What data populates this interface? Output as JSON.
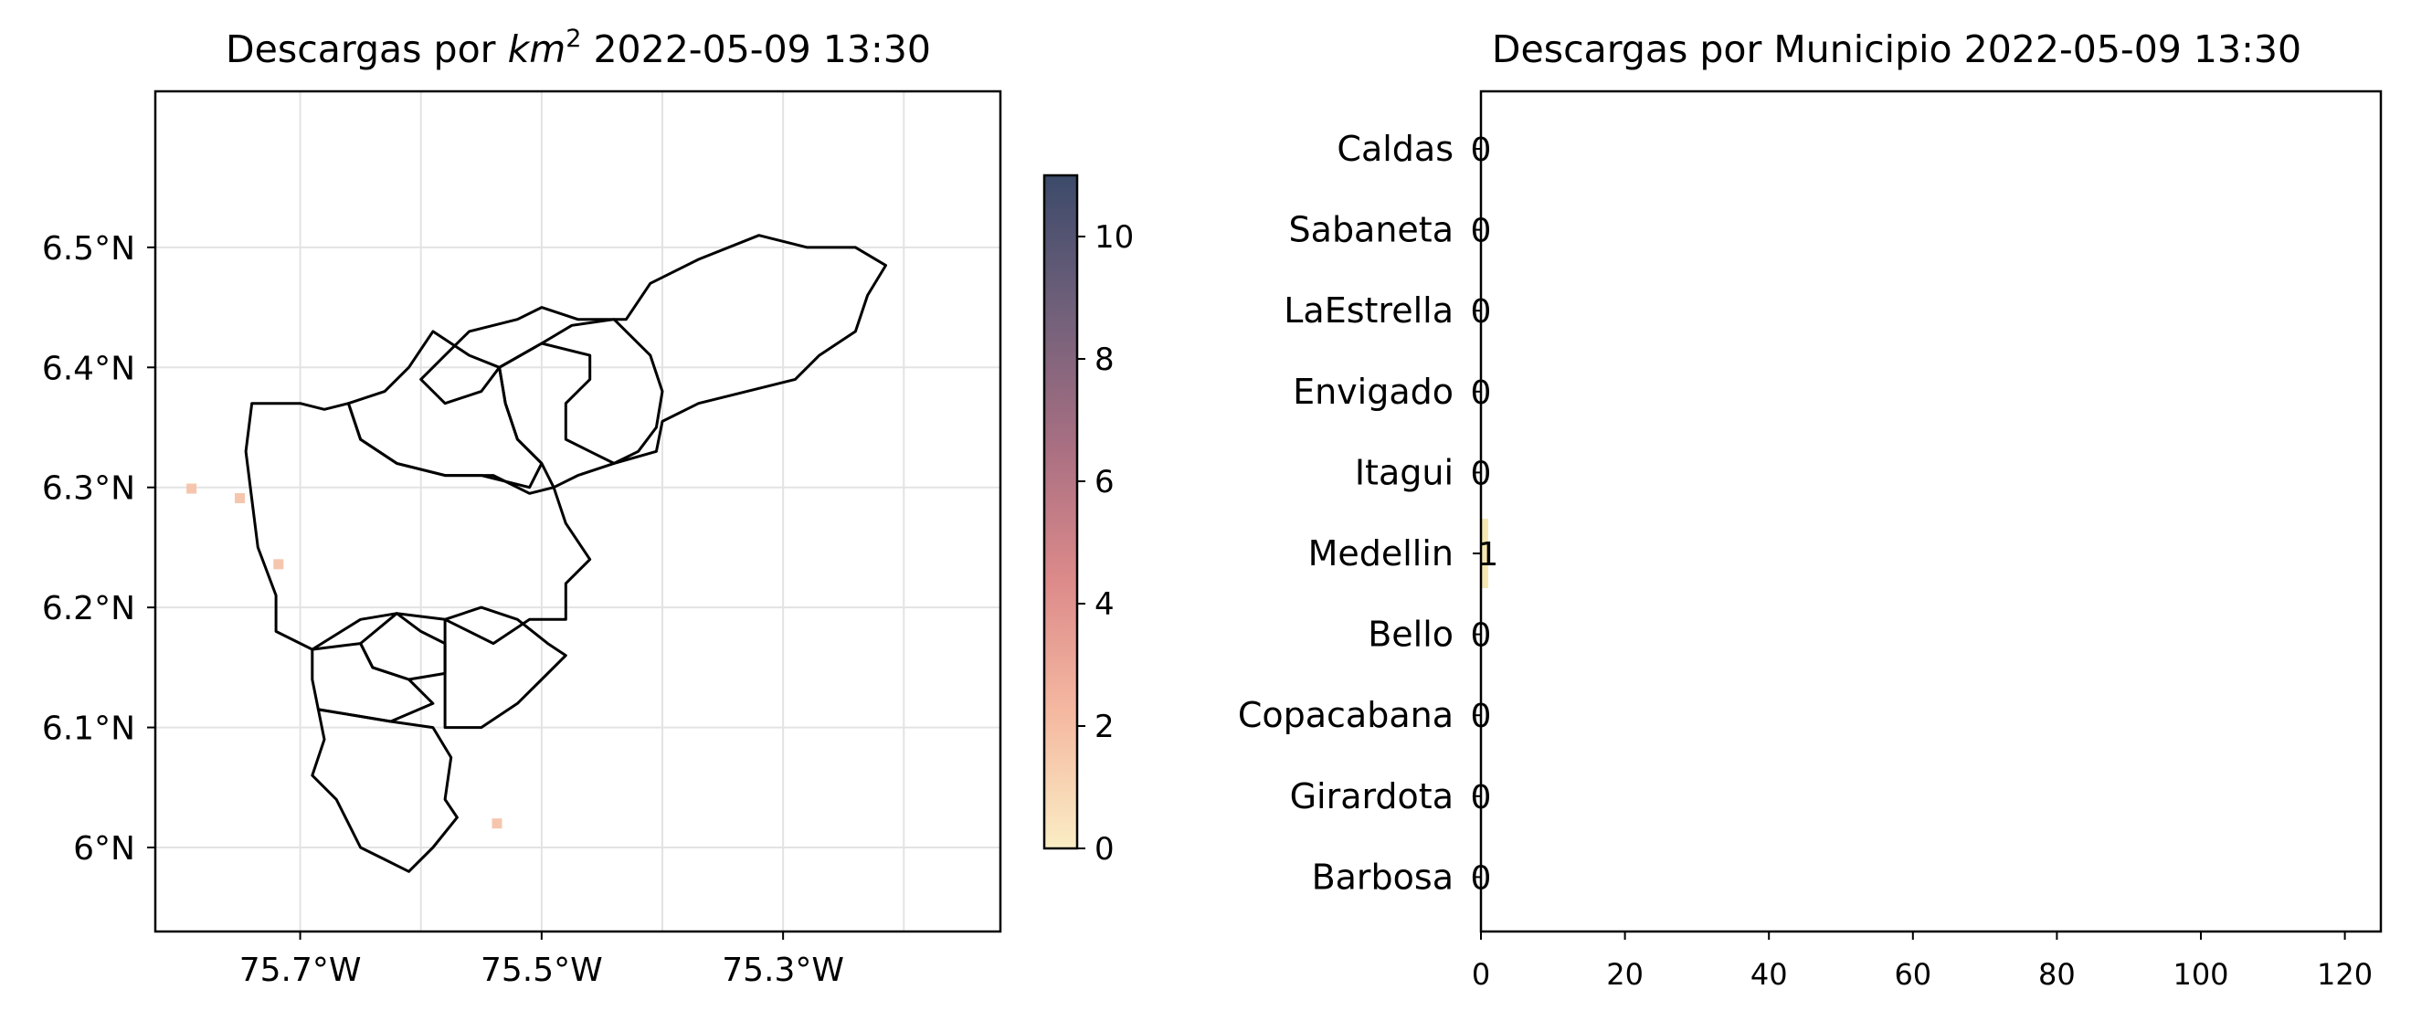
{
  "chart_data": [
    {
      "type": "heatmap",
      "title_prefix": "Descargas por ",
      "title_unit_base": "km",
      "title_unit_exp": "2",
      "title_date": " 2022-05-09 13:30",
      "x_ticks": [
        {
          "value": -75.7,
          "label": "75.7°W"
        },
        {
          "value": -75.5,
          "label": "75.5°W"
        },
        {
          "value": -75.3,
          "label": "75.3°W"
        }
      ],
      "x_gridlines": [
        -75.7,
        -75.6,
        -75.5,
        -75.4,
        -75.3,
        -75.2
      ],
      "y_ticks": [
        {
          "value": 6.5,
          "label": "6.5°N"
        },
        {
          "value": 6.4,
          "label": "6.4°N"
        },
        {
          "value": 6.3,
          "label": "6.3°N"
        },
        {
          "value": 6.2,
          "label": "6.2°N"
        },
        {
          "value": 6.1,
          "label": "6.1°N"
        },
        {
          "value": 6.0,
          "label": "6°N"
        }
      ],
      "xlim": [
        -75.82,
        -75.12
      ],
      "ylim": [
        5.93,
        6.63
      ],
      "grid": true,
      "strike_cells": [
        {
          "lon": -75.79,
          "lat": 6.299,
          "value": 1
        },
        {
          "lon": -75.75,
          "lat": 6.291,
          "value": 1
        },
        {
          "lon": -75.718,
          "lat": 6.236,
          "value": 1
        },
        {
          "lon": -75.537,
          "lat": 6.02,
          "value": 1
        }
      ],
      "colorbar": {
        "min": 0,
        "max": 11,
        "ticks": [
          {
            "value": 0,
            "label": "0"
          },
          {
            "value": 2,
            "label": "2"
          },
          {
            "value": 4,
            "label": "4"
          },
          {
            "value": 6,
            "label": "6"
          },
          {
            "value": 8,
            "label": "8"
          },
          {
            "value": 10,
            "label": "10"
          }
        ],
        "colors": [
          "#faedc4",
          "#f5b9a1",
          "#dc8a8a",
          "#a86f82",
          "#70607a",
          "#3c4a6a"
        ]
      }
    },
    {
      "type": "bar",
      "orientation": "horizontal",
      "title": "Descargas por Municipio 2022-05-09 13:30",
      "categories": [
        "Caldas",
        "Sabaneta",
        "LaEstrella",
        "Envigado",
        "Itagui",
        "Medellin",
        "Bello",
        "Copacabana",
        "Girardota",
        "Barbosa"
      ],
      "values": [
        0,
        0,
        0,
        0,
        0,
        1,
        0,
        0,
        0,
        0
      ],
      "value_labels": [
        "0",
        "0",
        "0",
        "0",
        "0",
        "1",
        "0",
        "0",
        "0",
        "0"
      ],
      "x_ticks": [
        {
          "value": 0,
          "label": "0"
        },
        {
          "value": 20,
          "label": "20"
        },
        {
          "value": 40,
          "label": "40"
        },
        {
          "value": 60,
          "label": "60"
        },
        {
          "value": 80,
          "label": "80"
        },
        {
          "value": 100,
          "label": "100"
        },
        {
          "value": 120,
          "label": "120"
        }
      ],
      "xlim": [
        0,
        125
      ],
      "bar_color": "#f5e6b3"
    }
  ]
}
